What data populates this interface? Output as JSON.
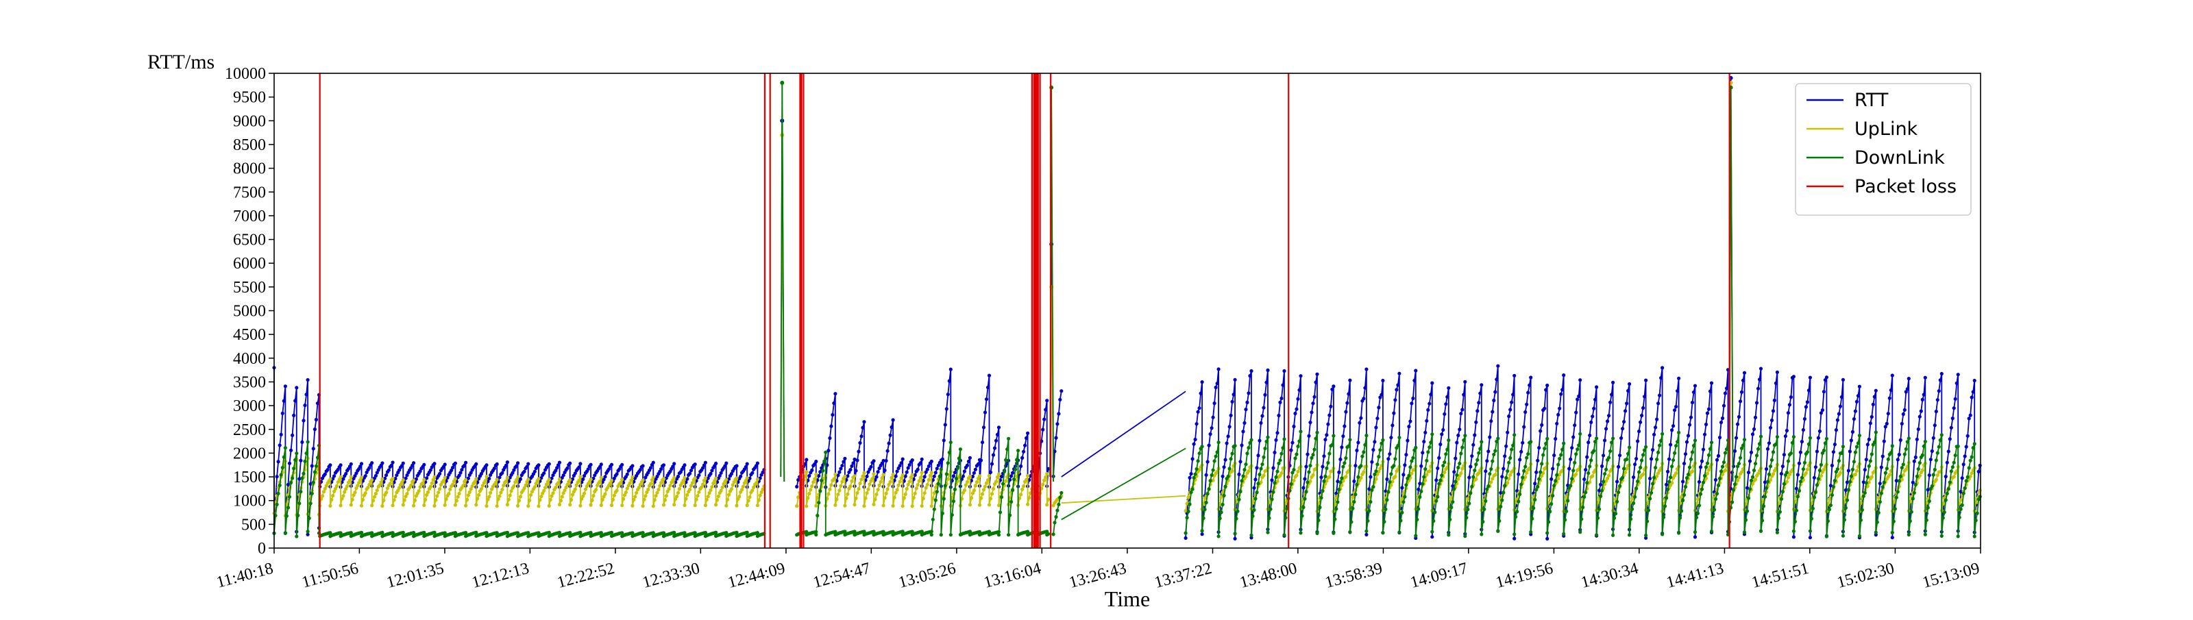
{
  "chart_data": {
    "type": "line",
    "xlabel": "Time",
    "ylabel": "RTT/ms",
    "ylim": [
      0,
      10000
    ],
    "yticks": [
      0,
      500,
      1000,
      1500,
      2000,
      2500,
      3000,
      3500,
      4000,
      4500,
      5000,
      5500,
      6000,
      6500,
      7000,
      7500,
      8000,
      8500,
      9000,
      9500,
      10000
    ],
    "xlim": [
      "11:40:18",
      "15:13:09"
    ],
    "xticks": [
      "11:40:18",
      "11:50:56",
      "12:01:35",
      "12:12:13",
      "12:22:52",
      "12:33:30",
      "12:44:09",
      "12:54:47",
      "13:05:26",
      "13:16:04",
      "13:26:43",
      "13:37:22",
      "13:48:00",
      "13:58:39",
      "14:09:17",
      "14:19:56",
      "14:30:34",
      "14:41:13",
      "14:51:51",
      "15:02:30",
      "15:13:09"
    ],
    "grid": false,
    "legend": {
      "placement": "top-right",
      "entries": [
        {
          "name": "RTT",
          "color": "#0000cc"
        },
        {
          "name": "UpLink",
          "color": "#c8c200"
        },
        {
          "name": "DownLink",
          "color": "#007a00"
        },
        {
          "name": "Packet loss",
          "color": "#e00000"
        }
      ]
    },
    "series": [
      {
        "name": "RTT",
        "color": "#0000cc",
        "markers": true,
        "segments": [
          {
            "start": "11:40:18",
            "end": "11:46:00",
            "period_min": 1.4,
            "min": 350,
            "max": 3600,
            "first": 3800
          },
          {
            "start": "11:46:00",
            "end": "12:41:30",
            "period_min": 1.3,
            "min": 1300,
            "max": 1800
          },
          {
            "start": "12:45:30",
            "end": "13:17:00",
            "period_min": 1.2,
            "min": 1300,
            "max": 1900,
            "spiky": true,
            "spike_max": 3800
          },
          {
            "start": "13:17:30",
            "end": "13:18:30",
            "period_min": 1.0,
            "min": 1500,
            "max": 3400
          },
          {
            "start": "13:34:00",
            "end": "15:13:09",
            "period_min": 2.05,
            "min": 300,
            "max": 3800
          }
        ],
        "outliers": [
          {
            "x": "12:43:40",
            "y": 9000
          },
          {
            "x": "13:17:15",
            "y": 6400
          },
          {
            "x": "14:42:00",
            "y": 9900
          }
        ],
        "connectors": [
          {
            "from": {
              "x": "13:18:30",
              "y": 1500
            },
            "to": {
              "x": "13:34:00",
              "y": 3300
            }
          }
        ]
      },
      {
        "name": "UpLink",
        "color": "#c8c200",
        "markers": true,
        "segments": [
          {
            "start": "11:40:18",
            "end": "11:46:00",
            "period_min": 1.4,
            "min": 700,
            "max": 1900
          },
          {
            "start": "11:46:00",
            "end": "12:41:30",
            "period_min": 1.3,
            "min": 900,
            "max": 1500
          },
          {
            "start": "12:45:30",
            "end": "13:17:00",
            "period_min": 1.2,
            "min": 900,
            "max": 1600
          },
          {
            "start": "13:17:30",
            "end": "13:18:30",
            "period_min": 1.0,
            "min": 900,
            "max": 1100
          },
          {
            "start": "13:34:00",
            "end": "15:13:09",
            "period_min": 2.05,
            "min": 800,
            "max": 1800
          }
        ],
        "outliers": [
          {
            "x": "12:43:40",
            "y": 8700
          },
          {
            "x": "13:17:15",
            "y": 5500
          },
          {
            "x": "14:42:00",
            "y": 9800
          }
        ],
        "connectors": [
          {
            "from": {
              "x": "13:18:30",
              "y": 950
            },
            "to": {
              "x": "13:34:00",
              "y": 1100
            }
          }
        ]
      },
      {
        "name": "DownLink",
        "color": "#007a00",
        "markers": true,
        "segments": [
          {
            "start": "11:40:18",
            "end": "11:46:00",
            "period_min": 1.4,
            "min": 300,
            "max": 2200
          },
          {
            "start": "11:46:00",
            "end": "12:41:30",
            "period_min": 1.3,
            "min": 250,
            "max": 330
          },
          {
            "start": "12:45:30",
            "end": "13:17:00",
            "period_min": 1.2,
            "min": 280,
            "max": 350,
            "spiky": true,
            "spike_max": 2400
          },
          {
            "start": "13:17:30",
            "end": "13:18:30",
            "period_min": 1.0,
            "min": 300,
            "max": 1200
          },
          {
            "start": "13:34:00",
            "end": "15:13:09",
            "period_min": 2.05,
            "min": 300,
            "max": 2400
          }
        ],
        "outliers": [
          {
            "x": "12:43:40",
            "y": 9800
          },
          {
            "x": "13:17:15",
            "y": 9700
          },
          {
            "x": "14:42:00",
            "y": 9700
          }
        ],
        "connectors": [
          {
            "from": {
              "x": "13:18:30",
              "y": 600
            },
            "to": {
              "x": "13:34:00",
              "y": 2100
            }
          }
        ]
      }
    ],
    "packet_loss": {
      "name": "Packet loss",
      "color": "#e00000",
      "events": [
        {
          "x": "11:46:00"
        },
        {
          "x": "12:41:30"
        },
        {
          "x": "12:42:10"
        },
        {
          "x": "12:46:00",
          "weight": 2
        },
        {
          "x": "12:46:20"
        },
        {
          "x": "13:14:50"
        },
        {
          "x": "13:15:10",
          "weight": 2
        },
        {
          "x": "13:15:30",
          "weight": 2
        },
        {
          "x": "13:15:50"
        },
        {
          "x": "13:17:10"
        },
        {
          "x": "13:46:50"
        },
        {
          "x": "14:41:50"
        }
      ]
    }
  }
}
